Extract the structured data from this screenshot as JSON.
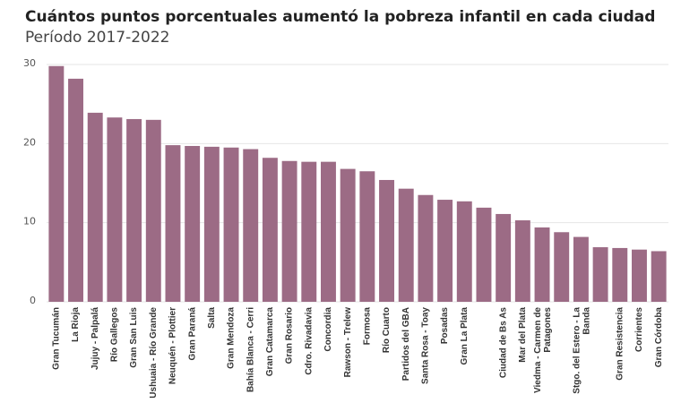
{
  "chart_data": {
    "type": "bar",
    "title": "Cuántos puntos porcentuales aumentó la pobreza infantil en cada ciudad",
    "subtitle": "Período 2017-2022",
    "categories": [
      "Gran Tucumán",
      "La Rioja",
      "Jujuy - Palpalá",
      "Río Gallegos",
      "Gran San Luis",
      "Ushuaia - Río Grande",
      "Neuquén - Plottier",
      "Gran Paraná",
      "Salta",
      "Gran Mendoza",
      "Bahía Blanca - Cerri",
      "Gran Catamarca",
      "Gran Rosario",
      "Cdro. Rivadavia",
      "Concordia",
      "Rawson - Trelew",
      "Formosa",
      "Río Cuarto",
      "Partidos del GBA",
      "Santa Rosa - Toay",
      "Posadas",
      "Gran La Plata",
      null,
      "Ciudad de Bs As",
      "Mar del Plata",
      "Viedma - Carmen de Patagones",
      null,
      "Stgo. del Estero - La Banda",
      null,
      "Gran Resistencia",
      "Corrientes",
      "Gran Córdoba"
    ],
    "values": [
      29.8,
      28.2,
      23.9,
      23.3,
      23.1,
      23.0,
      19.8,
      19.7,
      19.6,
      19.5,
      19.3,
      18.2,
      17.8,
      17.7,
      17.7,
      16.8,
      16.5,
      15.4,
      14.3,
      13.5,
      12.9,
      12.7,
      11.9,
      11.1,
      10.3,
      9.4,
      8.8,
      8.2,
      6.9,
      6.8,
      6.6,
      6.4
    ],
    "color": "#9c6b85",
    "ylim": [
      0,
      30
    ],
    "yticks": [
      0,
      10,
      20,
      30
    ],
    "grid": true
  }
}
